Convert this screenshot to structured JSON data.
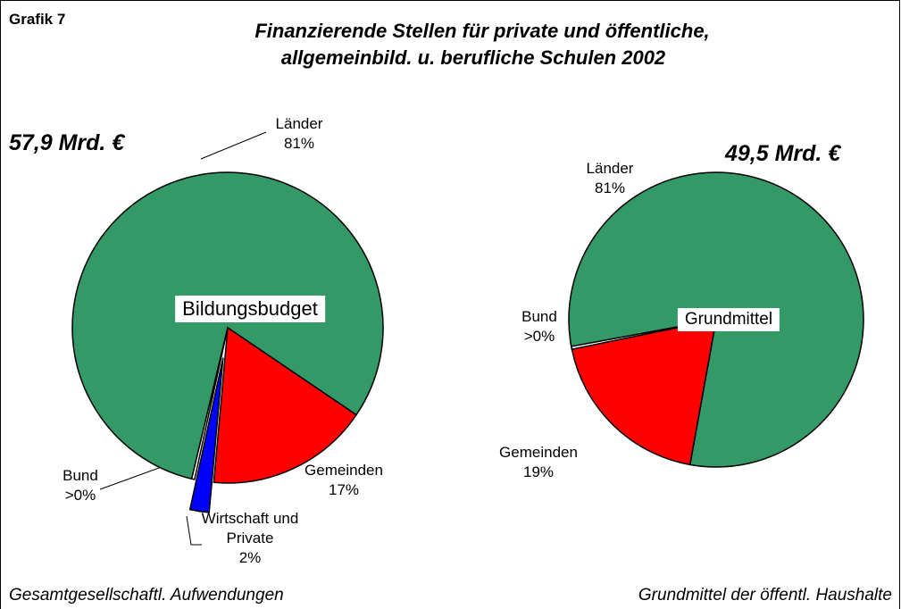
{
  "grafik": "Grafik 7",
  "title": [
    "Finanzierende Stellen für private und öffentliche,",
    "allgemeinbild. u. berufliche Schulen 2002"
  ],
  "chart_data": [
    {
      "type": "pie",
      "total_label": "57,9 Mrd. €",
      "center_label": "Bildungsbudget",
      "caption": "Gesamtgesellschaftl. Aufwendungen",
      "categories": [
        "Länder",
        "Gemeinden",
        "Wirtschaft und Private",
        "Bund"
      ],
      "values": [
        81,
        17,
        2,
        0.3
      ],
      "value_labels": [
        "81%",
        "17%",
        "2%",
        ">0%"
      ],
      "colors": [
        "#339966",
        "#ff0000",
        "#0000ff",
        "#ffffff"
      ]
    },
    {
      "type": "pie",
      "total_label": "49,5 Mrd. €",
      "center_label": "Grundmittel",
      "caption": "Grundmittel der öffentl. Haushalte",
      "categories": [
        "Länder",
        "Gemeinden",
        "Bund"
      ],
      "values": [
        81,
        19,
        0.3
      ],
      "value_labels": [
        "81%",
        "19%",
        ">0%"
      ],
      "colors": [
        "#339966",
        "#ff0000",
        "#ffffff"
      ]
    }
  ]
}
